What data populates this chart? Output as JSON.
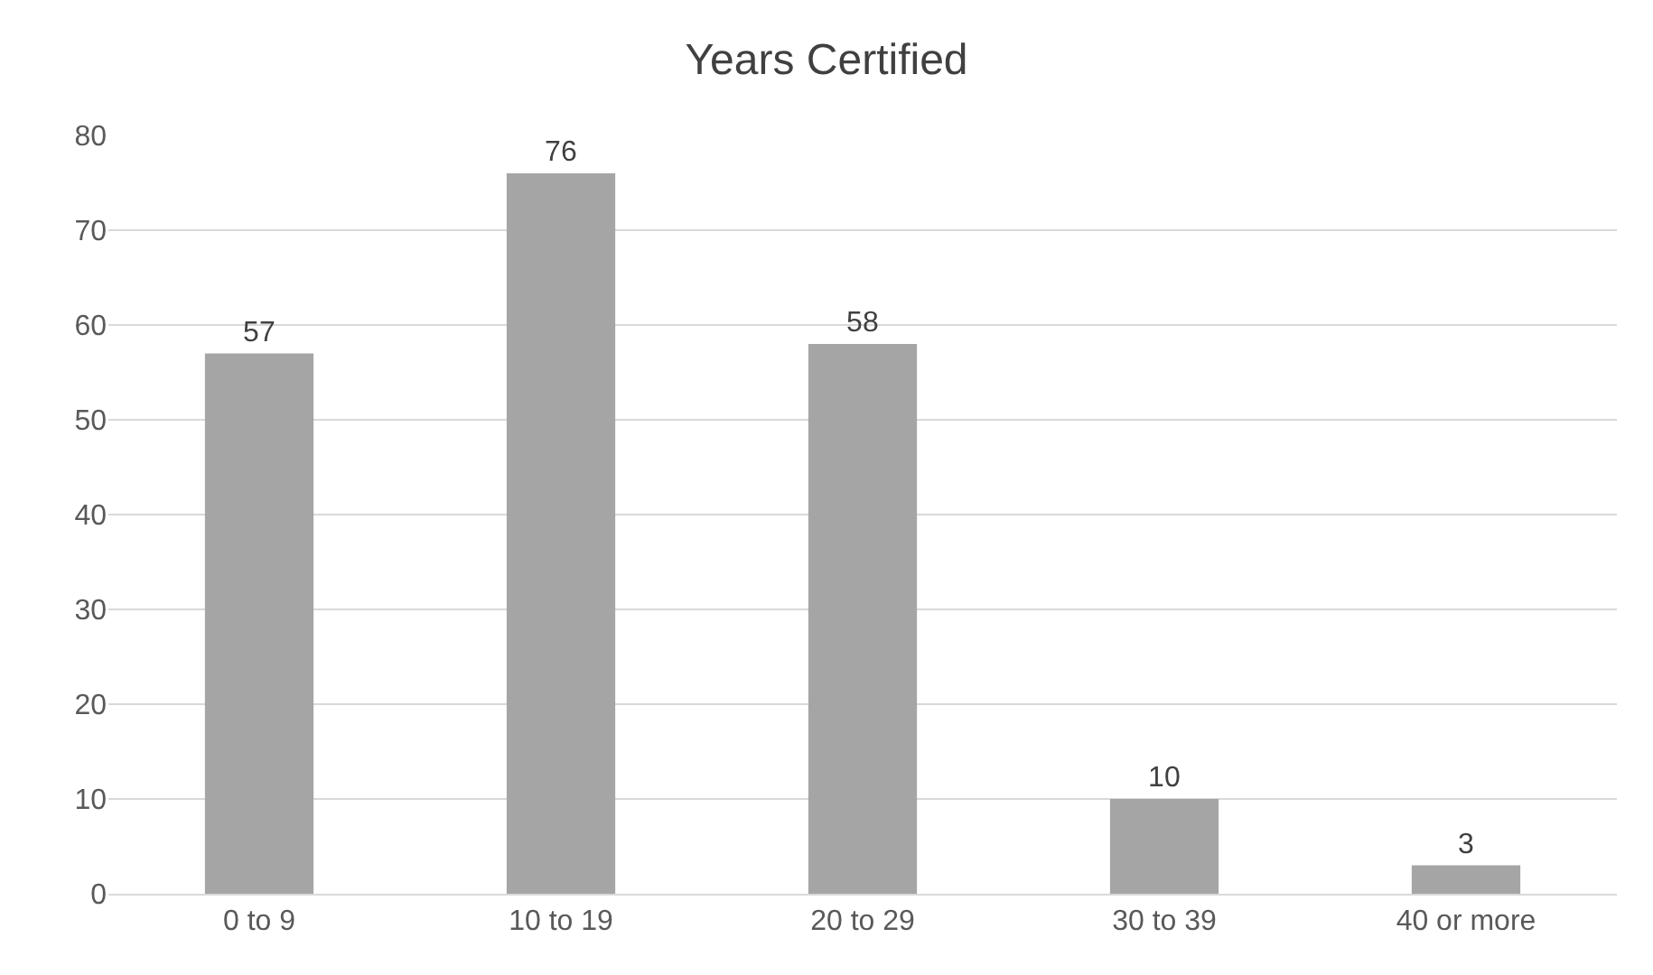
{
  "chart_data": {
    "type": "bar",
    "title": "Years Certified",
    "categories": [
      "0 to 9",
      "10 to 19",
      "20 to 29",
      "30 to 39",
      "40 or more"
    ],
    "values": [
      57,
      76,
      58,
      10,
      3
    ],
    "color": "#a5a5a5",
    "ylim": [
      0,
      80
    ],
    "yticks": [
      0,
      10,
      20,
      30,
      40,
      50,
      60,
      70,
      80
    ],
    "grid": "y",
    "data_labels": true
  }
}
